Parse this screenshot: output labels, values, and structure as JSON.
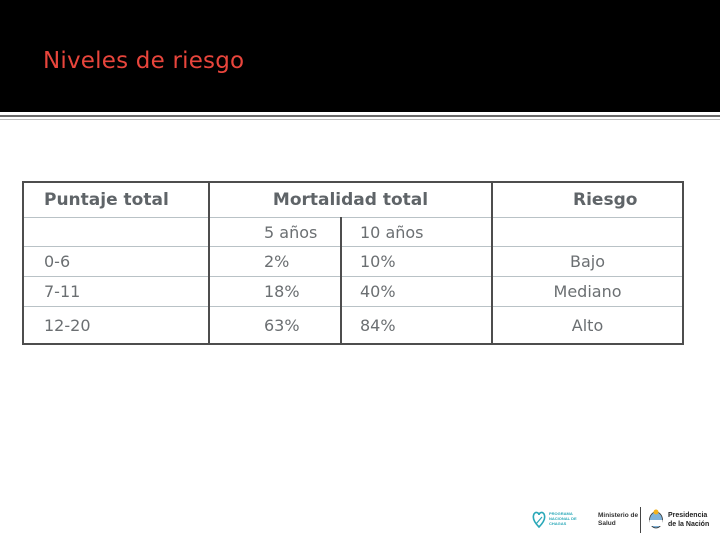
{
  "slide": {
    "title": "Niveles de riesgo"
  },
  "table": {
    "headers": {
      "puntaje": "Puntaje total",
      "mortalidad": "Mortalidad total",
      "riesgo": "Riesgo"
    },
    "subheaders": {
      "cinco": "5 años",
      "diez": "10 años"
    },
    "rows": [
      {
        "puntaje": "0-6",
        "cinco": "2%",
        "diez": "10%",
        "riesgo": "Bajo"
      },
      {
        "puntaje": "7-11",
        "cinco": "18%",
        "diez": "40%",
        "riesgo": "Mediano"
      },
      {
        "puntaje": "12-20",
        "cinco": "63%",
        "diez": "84%",
        "riesgo": "Alto"
      }
    ]
  },
  "footer": {
    "chagas_line1": "PROGRAMA",
    "chagas_line2": "NACIONAL DE",
    "chagas_line3": "CHAGAS",
    "ministerio_line1": "Ministerio de",
    "ministerio_line2": "Salud",
    "presidencia_line1": "Presidencia",
    "presidencia_line2": "de la Nación"
  },
  "colors": {
    "title": "#e8453c",
    "header_bar": "#000000",
    "table_text": "#6b6f72"
  }
}
